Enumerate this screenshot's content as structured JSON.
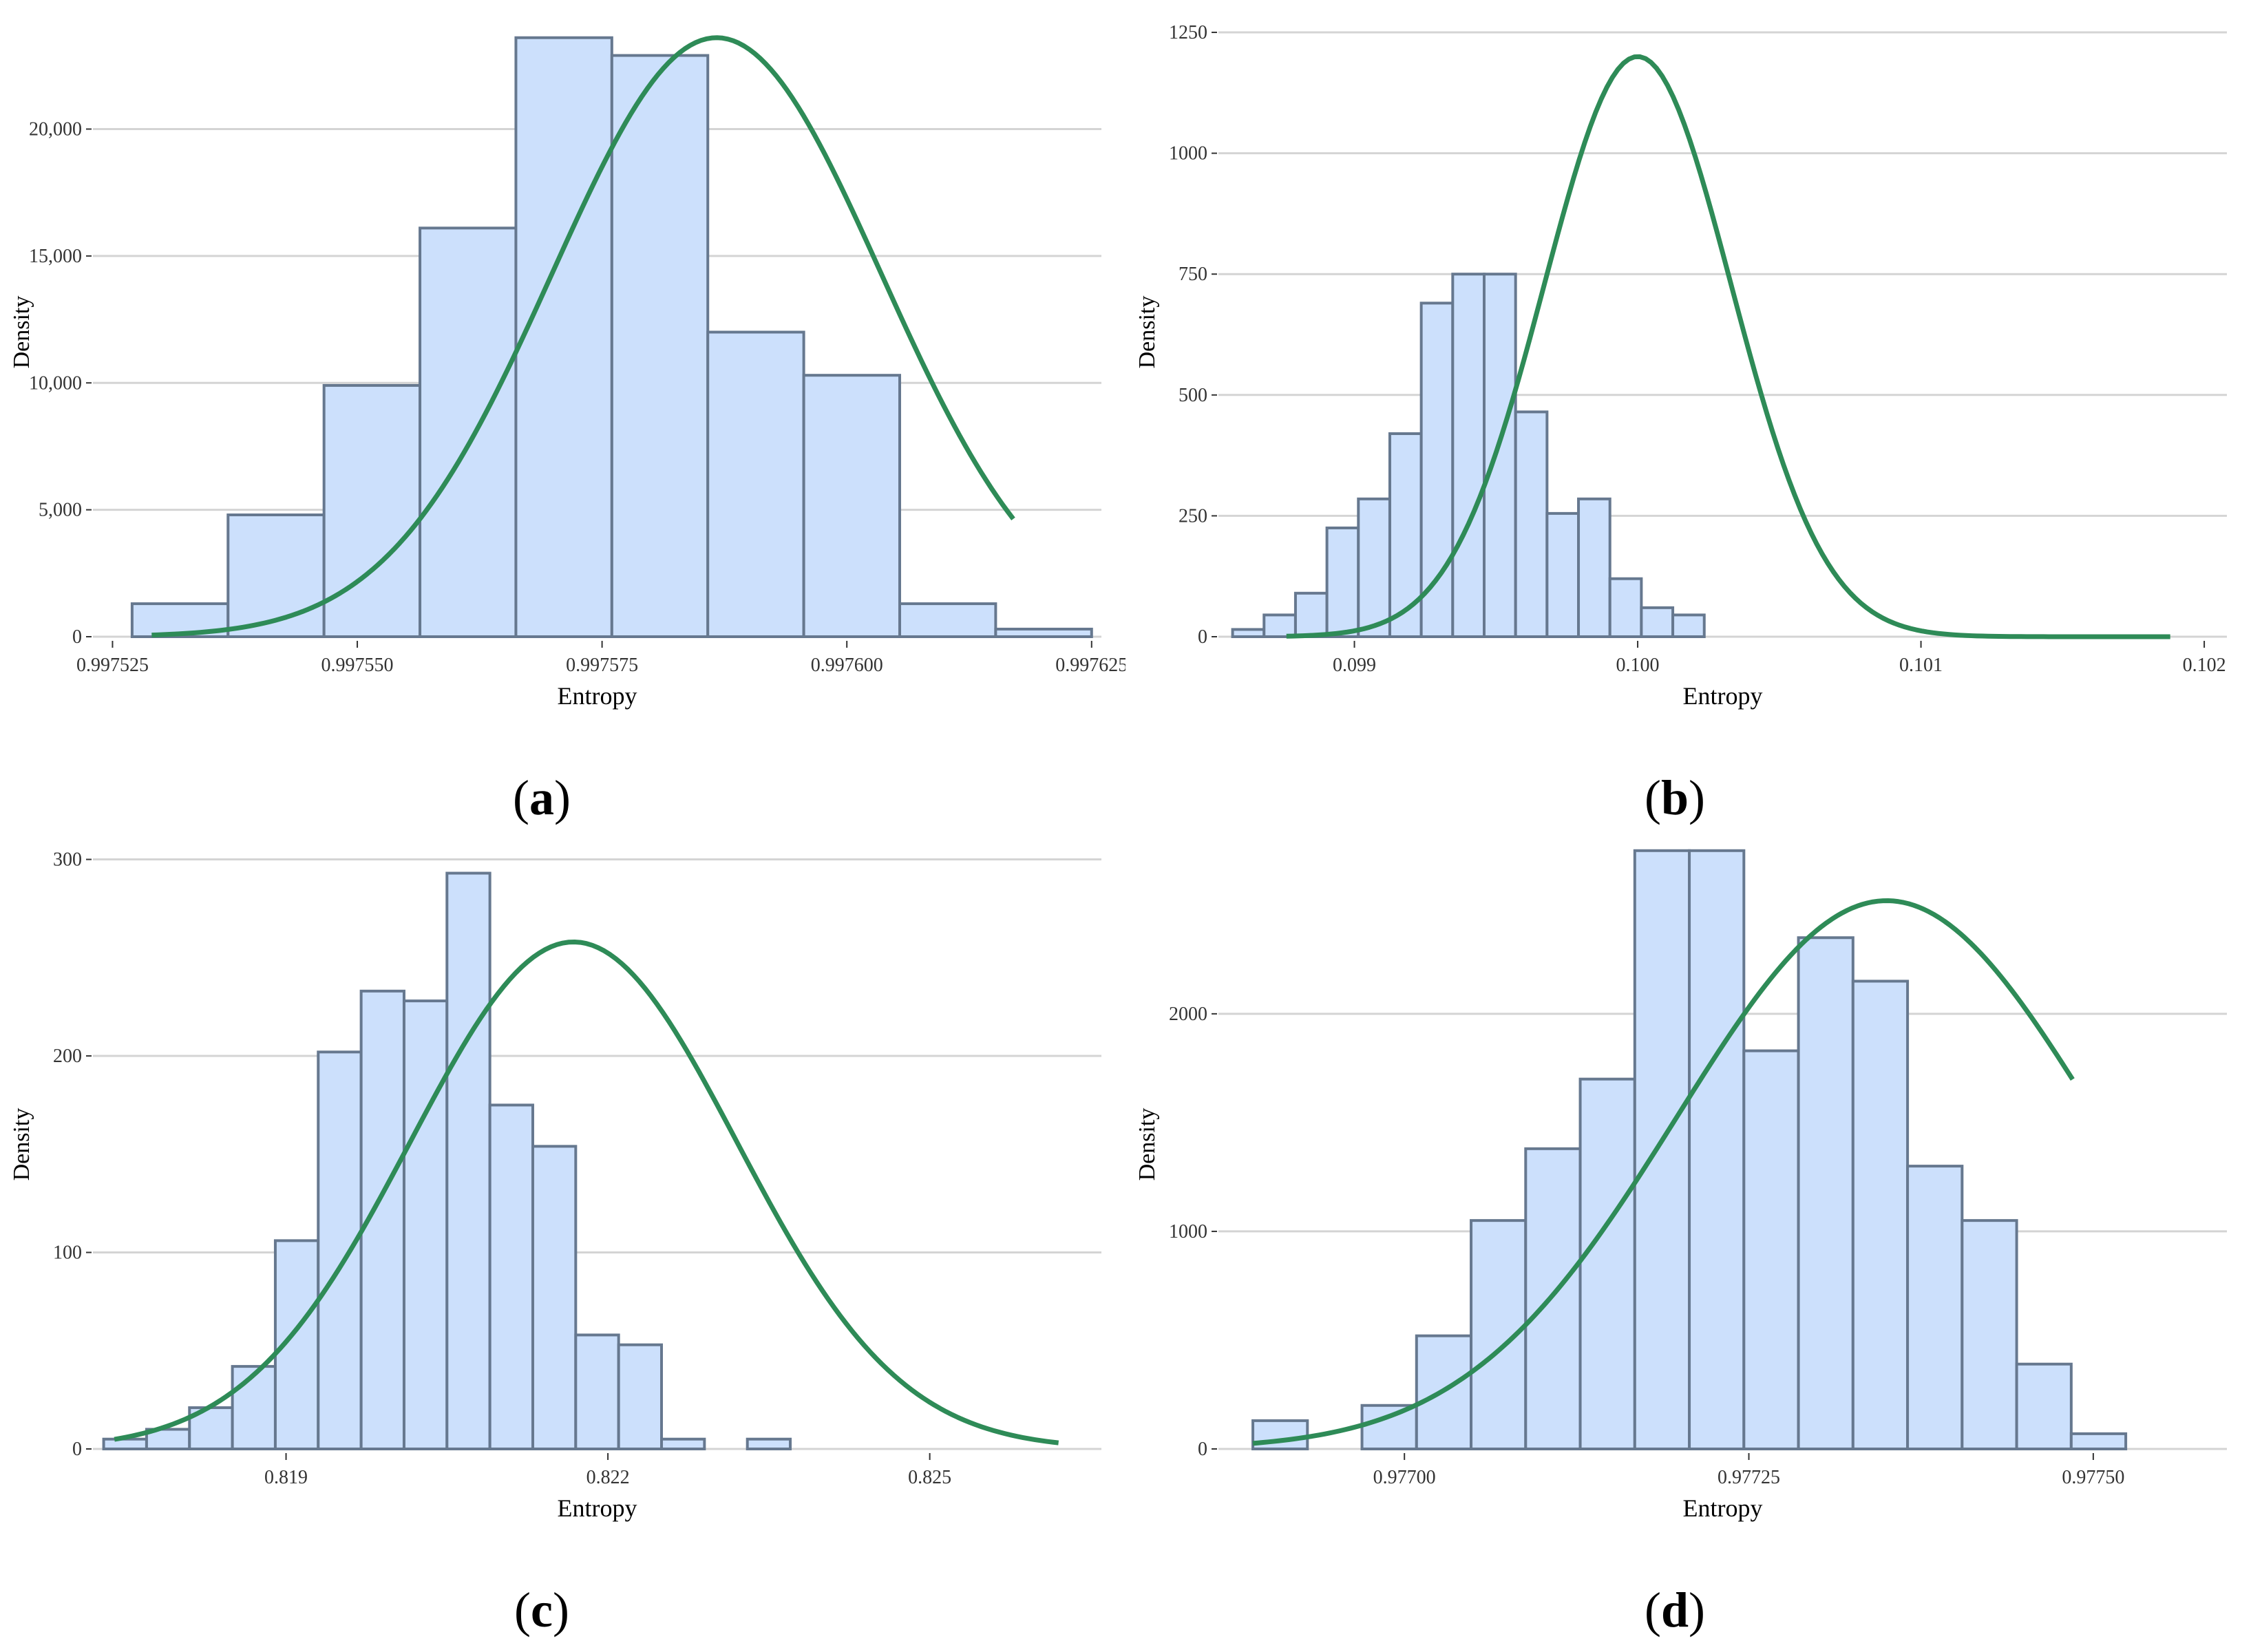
{
  "chart_data": [
    {
      "type": "bar",
      "caption": "a",
      "xlabel": "Entropy",
      "ylabel": "Density",
      "xlim": [
        0.997523,
        0.997626
      ],
      "ylim": [
        0,
        24000
      ],
      "x_ticks": [
        0.997525,
        0.99755,
        0.997575,
        0.9976,
        0.997625
      ],
      "x_tick_labels": [
        "0.997525",
        "0.997550",
        "0.997575",
        "0.997600",
        "0.997625"
      ],
      "y_ticks": [
        0,
        5000,
        10000,
        15000,
        20000
      ],
      "y_tick_labels": [
        "0",
        "5,000",
        "10,000",
        "15,000",
        "20,000"
      ],
      "bin_start": 0.997527,
      "bin_width": 9.8e-06,
      "values": [
        1300,
        4800,
        9900,
        16100,
        23600,
        22900,
        12000,
        10300,
        1300,
        300
      ],
      "density_curve": {
        "mean": 0.9975867,
        "sd": 1.68e-05,
        "peak": 23600,
        "x_range": [
          0.997529,
          0.997617
        ]
      }
    },
    {
      "type": "bar",
      "caption": "b",
      "xlabel": "Entropy",
      "ylabel": "Density",
      "xlim": [
        0.09852,
        0.10208
      ],
      "ylim": [
        0,
        1260
      ],
      "x_ticks": [
        0.099,
        0.1,
        0.101,
        0.102
      ],
      "x_tick_labels": [
        "0.099",
        "0.100",
        "0.101",
        "0.102"
      ],
      "y_ticks": [
        0,
        250,
        500,
        750,
        1000,
        1250
      ],
      "y_tick_labels": [
        "0",
        "250",
        "500",
        "750",
        "1000",
        "1250"
      ],
      "bin_start": 0.09857,
      "bin_width": 0.000111,
      "values": [
        15,
        45,
        90,
        225,
        285,
        420,
        690,
        750,
        750,
        465,
        255,
        285,
        120,
        60,
        45
      ],
      "density_curve": {
        "mean": 0.1,
        "sd": 0.00033,
        "peak": 1200,
        "x_range": [
          0.09876,
          0.10188
        ]
      }
    },
    {
      "type": "bar",
      "caption": "c",
      "xlabel": "Entropy",
      "ylabel": "Density",
      "xlim": [
        0.8172,
        0.8266
      ],
      "ylim": [
        0,
        310
      ],
      "x_ticks": [
        0.819,
        0.822,
        0.825
      ],
      "x_tick_labels": [
        "0.819",
        "0.822",
        "0.825"
      ],
      "y_ticks": [
        0,
        100,
        200,
        300
      ],
      "y_tick_labels": [
        "0",
        "100",
        "200",
        "300"
      ],
      "bin_start": 0.8173,
      "bin_width": 0.0004,
      "values": [
        5,
        10,
        21,
        42,
        106,
        202,
        233,
        228,
        293,
        175,
        154,
        58,
        53,
        5,
        0,
        5
      ],
      "density_curve": {
        "mean": 0.82168,
        "sd": 0.00152,
        "peak": 258,
        "x_range": [
          0.8174,
          0.8262
        ]
      }
    },
    {
      "type": "bar",
      "caption": "d",
      "xlabel": "Entropy",
      "ylabel": "Density",
      "xlim": [
        0.976865,
        0.977597
      ],
      "ylim": [
        0,
        2800
      ],
      "x_ticks": [
        0.977,
        0.97725,
        0.9775
      ],
      "x_tick_labels": [
        "0.97700",
        "0.97725",
        "0.97750"
      ],
      "y_ticks": [
        0,
        1000,
        2000
      ],
      "y_tick_labels": [
        "0",
        "1000",
        "2000"
      ],
      "bin_start": 0.97689,
      "bin_width": 3.96e-05,
      "values": [
        130,
        0,
        200,
        520,
        1050,
        1380,
        1700,
        2750,
        2750,
        1830,
        2350,
        2150,
        1300,
        1050,
        390,
        70
      ],
      "density_curve": {
        "mean": 0.97735,
        "sd": 0.000152,
        "peak": 2520,
        "x_range": [
          0.97689,
          0.977485
        ]
      }
    }
  ]
}
